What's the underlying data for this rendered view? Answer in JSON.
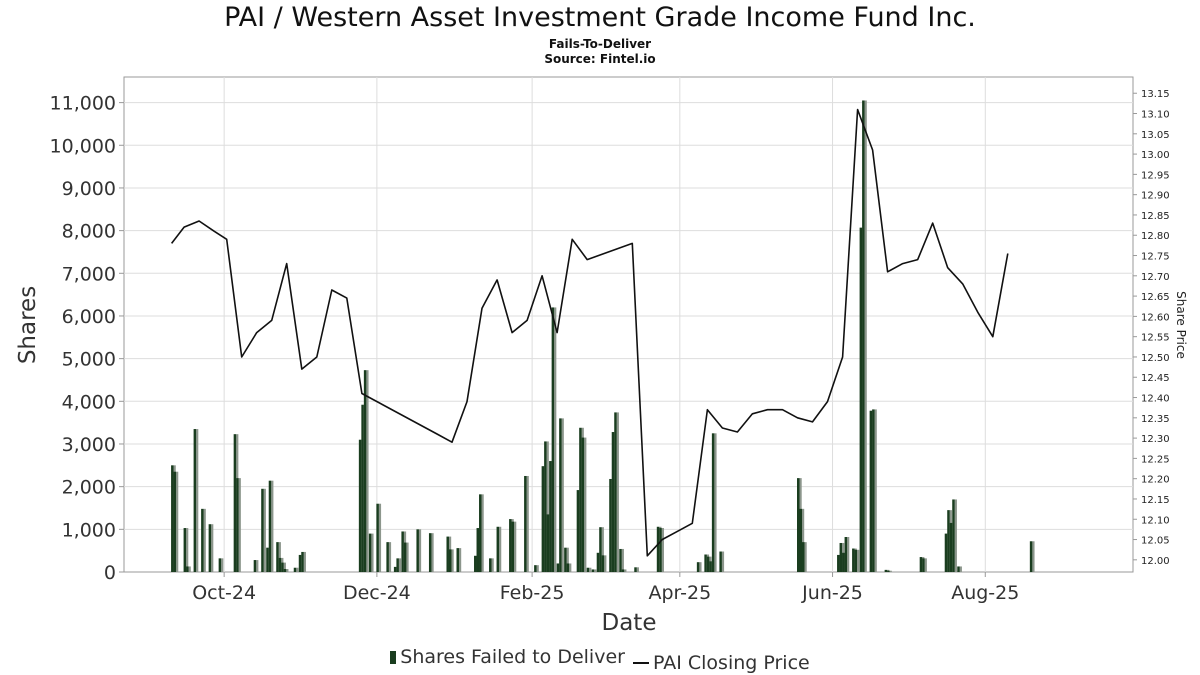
{
  "header": {
    "title": "PAI / Western Asset Investment Grade Income Fund Inc.",
    "subtitle": "Fails-To-Deliver",
    "source": "Source: Fintel.io"
  },
  "legend": {
    "bars_label": "Shares Failed to Deliver",
    "line_label": "PAI Closing Price"
  },
  "colors": {
    "bar_dark": "#1a3d1f",
    "bar_light": "#8c968c",
    "line": "#111111",
    "grid": "#dddddd"
  },
  "chart_data": {
    "type": "bar",
    "title": "PAI / Western Asset Investment Grade Income Fund Inc.",
    "subtitle": "Fails-To-Deliver",
    "xlabel": "Date",
    "ylabel": "Shares",
    "y2label": "Share Price",
    "xlim": [
      "2024-08-22",
      "2025-09-29"
    ],
    "ylim": [
      0,
      11600
    ],
    "y2lim": [
      11.97,
      13.19
    ],
    "x_ticks": [
      {
        "date": "2024-10-01",
        "label": "Oct-24"
      },
      {
        "date": "2024-12-01",
        "label": "Dec-24"
      },
      {
        "date": "2025-02-01",
        "label": "Feb-25"
      },
      {
        "date": "2025-04-01",
        "label": "Apr-25"
      },
      {
        "date": "2025-06-01",
        "label": "Jun-25"
      },
      {
        "date": "2025-08-01",
        "label": "Aug-25"
      }
    ],
    "y_ticks": [
      "0",
      "1,000",
      "2,000",
      "3,000",
      "4,000",
      "5,000",
      "6,000",
      "7,000",
      "8,000",
      "9,000",
      "10,000",
      "11,000"
    ],
    "y2_ticks": [
      "12.00",
      "12.05",
      "12.10",
      "12.15",
      "12.20",
      "12.25",
      "12.30",
      "12.35",
      "12.40",
      "12.45",
      "12.50",
      "12.55",
      "12.60",
      "12.65",
      "12.70",
      "12.75",
      "12.80",
      "12.85",
      "12.90",
      "12.95",
      "13.00",
      "13.05",
      "13.10",
      "13.15"
    ],
    "grid": true,
    "legend_position": "bottom",
    "series": [
      {
        "name": "Shares Failed to Deliver",
        "type": "bar",
        "points": [
          {
            "x": "2024-09-10",
            "y": 2500
          },
          {
            "x": "2024-09-11",
            "y": 2350
          },
          {
            "x": "2024-09-15",
            "y": 1030
          },
          {
            "x": "2024-09-16",
            "y": 130
          },
          {
            "x": "2024-09-19",
            "y": 3350
          },
          {
            "x": "2024-09-22",
            "y": 1480
          },
          {
            "x": "2024-09-25",
            "y": 1120
          },
          {
            "x": "2024-09-29",
            "y": 320
          },
          {
            "x": "2024-10-05",
            "y": 3230
          },
          {
            "x": "2024-10-06",
            "y": 2200
          },
          {
            "x": "2024-10-13",
            "y": 280
          },
          {
            "x": "2024-10-16",
            "y": 1950
          },
          {
            "x": "2024-10-18",
            "y": 570
          },
          {
            "x": "2024-10-19",
            "y": 2140
          },
          {
            "x": "2024-10-22",
            "y": 700
          },
          {
            "x": "2024-10-23",
            "y": 330
          },
          {
            "x": "2024-10-24",
            "y": 220
          },
          {
            "x": "2024-10-25",
            "y": 70
          },
          {
            "x": "2024-10-29",
            "y": 100
          },
          {
            "x": "2024-10-31",
            "y": 400
          },
          {
            "x": "2024-11-01",
            "y": 470
          },
          {
            "x": "2024-11-24",
            "y": 3100
          },
          {
            "x": "2024-11-25",
            "y": 3920
          },
          {
            "x": "2024-11-26",
            "y": 4730
          },
          {
            "x": "2024-11-28",
            "y": 900
          },
          {
            "x": "2024-12-01",
            "y": 1600
          },
          {
            "x": "2024-12-05",
            "y": 700
          },
          {
            "x": "2024-12-08",
            "y": 120
          },
          {
            "x": "2024-12-09",
            "y": 320
          },
          {
            "x": "2024-12-11",
            "y": 950
          },
          {
            "x": "2024-12-12",
            "y": 690
          },
          {
            "x": "2024-12-17",
            "y": 1000
          },
          {
            "x": "2024-12-22",
            "y": 910
          },
          {
            "x": "2024-12-29",
            "y": 830
          },
          {
            "x": "2024-12-30",
            "y": 530
          },
          {
            "x": "2025-01-02",
            "y": 560
          },
          {
            "x": "2025-01-09",
            "y": 380
          },
          {
            "x": "2025-01-10",
            "y": 1030
          },
          {
            "x": "2025-01-11",
            "y": 1820
          },
          {
            "x": "2025-01-15",
            "y": 320
          },
          {
            "x": "2025-01-18",
            "y": 1060
          },
          {
            "x": "2025-01-23",
            "y": 1240
          },
          {
            "x": "2025-01-24",
            "y": 1180
          },
          {
            "x": "2025-01-29",
            "y": 2250
          },
          {
            "x": "2025-02-02",
            "y": 160
          },
          {
            "x": "2025-02-05",
            "y": 2480
          },
          {
            "x": "2025-02-06",
            "y": 3060
          },
          {
            "x": "2025-02-07",
            "y": 1350
          },
          {
            "x": "2025-02-08",
            "y": 2600
          },
          {
            "x": "2025-02-09",
            "y": 6200
          },
          {
            "x": "2025-02-11",
            "y": 200
          },
          {
            "x": "2025-02-12",
            "y": 3600
          },
          {
            "x": "2025-02-14",
            "y": 570
          },
          {
            "x": "2025-02-15",
            "y": 200
          },
          {
            "x": "2025-02-19",
            "y": 1920
          },
          {
            "x": "2025-02-20",
            "y": 3380
          },
          {
            "x": "2025-02-21",
            "y": 3150
          },
          {
            "x": "2025-02-23",
            "y": 100
          },
          {
            "x": "2025-02-25",
            "y": 60
          },
          {
            "x": "2025-02-27",
            "y": 450
          },
          {
            "x": "2025-02-28",
            "y": 1050
          },
          {
            "x": "2025-03-01",
            "y": 390
          },
          {
            "x": "2025-03-04",
            "y": 2180
          },
          {
            "x": "2025-03-05",
            "y": 3280
          },
          {
            "x": "2025-03-06",
            "y": 3740
          },
          {
            "x": "2025-03-08",
            "y": 540
          },
          {
            "x": "2025-03-09",
            "y": 60
          },
          {
            "x": "2025-03-14",
            "y": 110
          },
          {
            "x": "2025-03-23",
            "y": 1060
          },
          {
            "x": "2025-03-24",
            "y": 1030
          },
          {
            "x": "2025-04-08",
            "y": 230
          },
          {
            "x": "2025-04-11",
            "y": 410
          },
          {
            "x": "2025-04-12",
            "y": 360
          },
          {
            "x": "2025-04-13",
            "y": 250
          },
          {
            "x": "2025-04-14",
            "y": 3250
          },
          {
            "x": "2025-04-17",
            "y": 480
          },
          {
            "x": "2025-05-18",
            "y": 2200
          },
          {
            "x": "2025-05-19",
            "y": 1480
          },
          {
            "x": "2025-05-20",
            "y": 700
          },
          {
            "x": "2025-06-03",
            "y": 400
          },
          {
            "x": "2025-06-04",
            "y": 680
          },
          {
            "x": "2025-06-05",
            "y": 450
          },
          {
            "x": "2025-06-06",
            "y": 820
          },
          {
            "x": "2025-06-09",
            "y": 550
          },
          {
            "x": "2025-06-10",
            "y": 520
          },
          {
            "x": "2025-06-12",
            "y": 8070
          },
          {
            "x": "2025-06-13",
            "y": 11050
          },
          {
            "x": "2025-06-16",
            "y": 3780
          },
          {
            "x": "2025-06-17",
            "y": 3810
          },
          {
            "x": "2025-06-22",
            "y": 50
          },
          {
            "x": "2025-06-23",
            "y": 30
          },
          {
            "x": "2025-07-06",
            "y": 350
          },
          {
            "x": "2025-07-07",
            "y": 320
          },
          {
            "x": "2025-07-16",
            "y": 900
          },
          {
            "x": "2025-07-17",
            "y": 1450
          },
          {
            "x": "2025-07-18",
            "y": 1150
          },
          {
            "x": "2025-07-19",
            "y": 1700
          },
          {
            "x": "2025-07-21",
            "y": 130
          },
          {
            "x": "2025-08-19",
            "y": 720
          }
        ]
      },
      {
        "name": "PAI Closing Price",
        "type": "line",
        "points": [
          {
            "x": "2024-09-10",
            "y": 12.78
          },
          {
            "x": "2024-09-15",
            "y": 12.82
          },
          {
            "x": "2024-09-21",
            "y": 12.835
          },
          {
            "x": "2024-09-27",
            "y": 12.81
          },
          {
            "x": "2024-10-02",
            "y": 12.79
          },
          {
            "x": "2024-10-08",
            "y": 12.5
          },
          {
            "x": "2024-10-14",
            "y": 12.56
          },
          {
            "x": "2024-10-20",
            "y": 12.59
          },
          {
            "x": "2024-10-26",
            "y": 12.73
          },
          {
            "x": "2024-11-01",
            "y": 12.47
          },
          {
            "x": "2024-11-07",
            "y": 12.5
          },
          {
            "x": "2024-11-13",
            "y": 12.665
          },
          {
            "x": "2024-11-19",
            "y": 12.645
          },
          {
            "x": "2024-11-25",
            "y": 12.41
          },
          {
            "x": "2024-12-25",
            "y": 12.31
          },
          {
            "x": "2024-12-31",
            "y": 12.29
          },
          {
            "x": "2025-01-06",
            "y": 12.39
          },
          {
            "x": "2025-01-12",
            "y": 12.62
          },
          {
            "x": "2025-01-18",
            "y": 12.69
          },
          {
            "x": "2025-01-24",
            "y": 12.56
          },
          {
            "x": "2025-01-30",
            "y": 12.59
          },
          {
            "x": "2025-02-05",
            "y": 12.7
          },
          {
            "x": "2025-02-11",
            "y": 12.56
          },
          {
            "x": "2025-02-17",
            "y": 12.79
          },
          {
            "x": "2025-02-23",
            "y": 12.74
          },
          {
            "x": "2025-03-13",
            "y": 12.78
          },
          {
            "x": "2025-03-19",
            "y": 12.01
          },
          {
            "x": "2025-03-25",
            "y": 12.05
          },
          {
            "x": "2025-03-31",
            "y": 12.07
          },
          {
            "x": "2025-04-06",
            "y": 12.09
          },
          {
            "x": "2025-04-12",
            "y": 12.37
          },
          {
            "x": "2025-04-18",
            "y": 12.325
          },
          {
            "x": "2025-04-24",
            "y": 12.315
          },
          {
            "x": "2025-04-30",
            "y": 12.36
          },
          {
            "x": "2025-05-06",
            "y": 12.37
          },
          {
            "x": "2025-05-12",
            "y": 12.37
          },
          {
            "x": "2025-05-18",
            "y": 12.35
          },
          {
            "x": "2025-05-24",
            "y": 12.34
          },
          {
            "x": "2025-05-30",
            "y": 12.39
          },
          {
            "x": "2025-06-05",
            "y": 12.5
          },
          {
            "x": "2025-06-11",
            "y": 13.11
          },
          {
            "x": "2025-06-17",
            "y": 13.01
          },
          {
            "x": "2025-06-23",
            "y": 12.71
          },
          {
            "x": "2025-06-29",
            "y": 12.73
          },
          {
            "x": "2025-07-05",
            "y": 12.74
          },
          {
            "x": "2025-07-11",
            "y": 12.83
          },
          {
            "x": "2025-07-17",
            "y": 12.72
          },
          {
            "x": "2025-07-23",
            "y": 12.68
          },
          {
            "x": "2025-07-29",
            "y": 12.61
          },
          {
            "x": "2025-08-04",
            "y": 12.55
          },
          {
            "x": "2025-08-10",
            "y": 12.755
          }
        ]
      }
    ]
  }
}
